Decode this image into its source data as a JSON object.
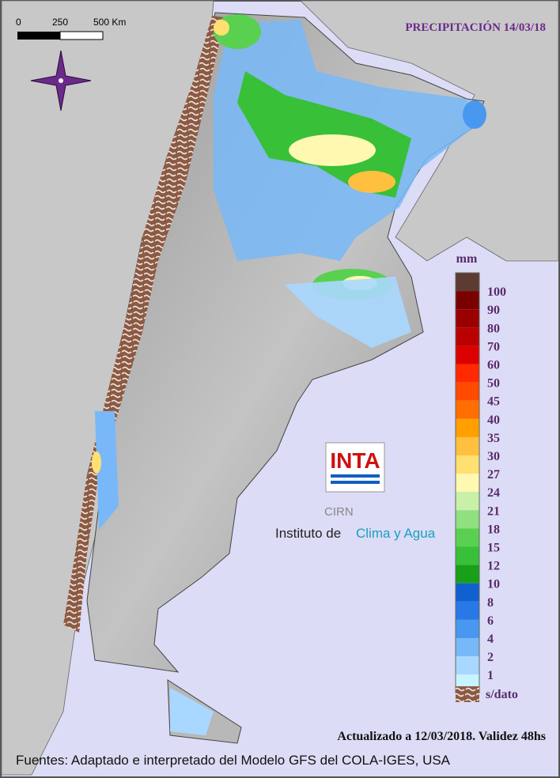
{
  "title": "PRECIPITACIÓN 14/03/18",
  "scale_bar": {
    "labels": [
      "0",
      "250",
      "500 Km"
    ]
  },
  "legend": {
    "unit": "mm",
    "colors": [
      "#5c3b30",
      "#7a0000",
      "#9a0000",
      "#bb0000",
      "#dd0000",
      "#ff2a00",
      "#ff4a00",
      "#ff6e00",
      "#ffa000",
      "#ffc040",
      "#ffe070",
      "#fff8b0",
      "#c8f0a8",
      "#90e080",
      "#5ad050",
      "#38c038",
      "#18a018",
      "#1060d0",
      "#2878e8",
      "#4898f0",
      "#78b8f8",
      "#a8d8ff",
      "#c8f4ff"
    ],
    "labels": [
      100,
      90,
      80,
      70,
      60,
      50,
      45,
      40,
      35,
      30,
      27,
      24,
      21,
      18,
      15,
      12,
      10,
      8,
      6,
      4,
      2,
      1
    ],
    "no_data_label": "s/dato"
  },
  "logo": {
    "name": "INTA",
    "unit": "CIRN",
    "institute_prefix": "Instituto de",
    "institute_name": "Clima y Agua"
  },
  "footer": {
    "updated": "Actualizado a 12/03/2018. Validez 48hs",
    "sources": "Fuentes: Adaptado e interpretado del Modelo GFS del COLA-IGES, USA"
  }
}
